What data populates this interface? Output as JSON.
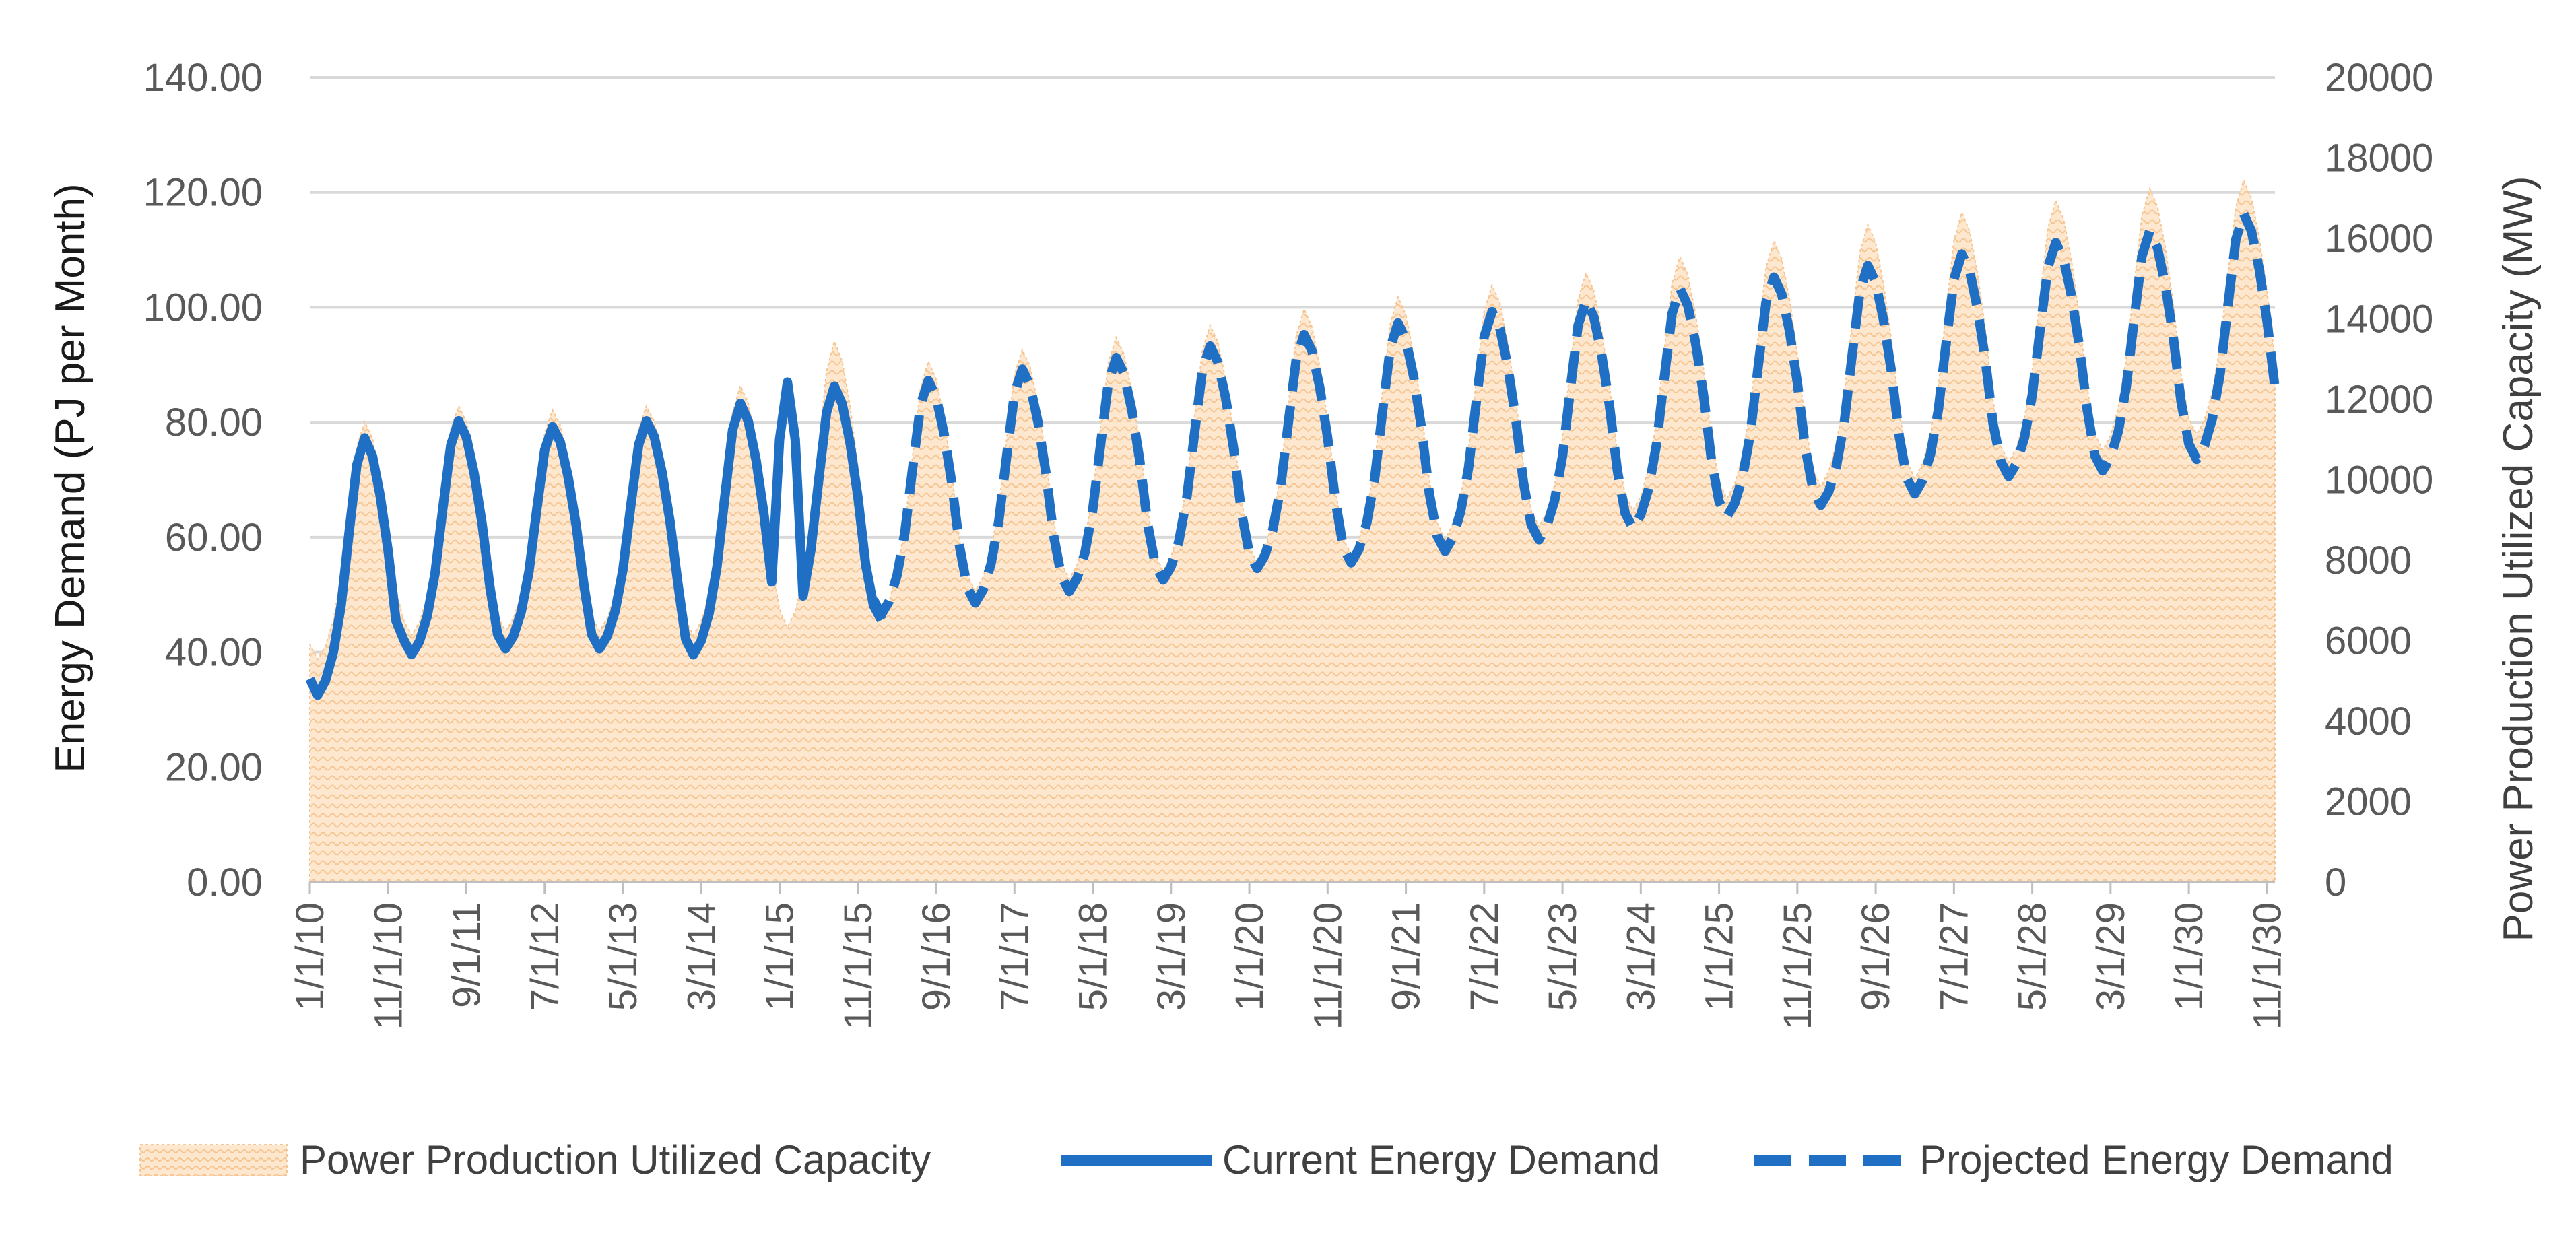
{
  "chart_data": {
    "type": "line",
    "title": "",
    "x_start": "2010-01",
    "x_end": "2030-12",
    "x_tick_labels": [
      "1/1/10",
      "11/1/10",
      "9/1/11",
      "7/1/12",
      "5/1/13",
      "3/1/14",
      "1/1/15",
      "11/1/15",
      "9/1/16",
      "7/1/17",
      "5/1/18",
      "3/1/19",
      "1/1/20",
      "11/1/20",
      "9/1/21",
      "7/1/22",
      "5/1/23",
      "3/1/24",
      "1/1/25",
      "11/1/25",
      "9/1/26",
      "7/1/27",
      "5/1/28",
      "3/1/29",
      "1/1/30",
      "11/1/30"
    ],
    "ylabel_left": "Energy Demand (PJ per Month)",
    "ylabel_right": "Power Production Utilized Capacity (MW)",
    "ylim_left": [
      0,
      140
    ],
    "ylim_right": [
      0,
      20000
    ],
    "y_ticks_left": [
      "0.00",
      "20.00",
      "40.00",
      "60.00",
      "80.00",
      "100.00",
      "120.00",
      "140.00"
    ],
    "y_ticks_right": [
      "0",
      "2000",
      "4000",
      "6000",
      "8000",
      "10000",
      "12000",
      "14000",
      "16000",
      "18000",
      "20000"
    ],
    "grid": true,
    "legend_position": "bottom",
    "series": [
      {
        "name": "Power Production Utilized Capacity",
        "kind": "area",
        "axis": "right",
        "color": "#fbe3c4",
        "pattern_color": "#f5c48e",
        "description": "monthly capacity (MW), approx 1.02x energy demand scaled to right axis",
        "yearly_peaks_mw": [
          11400,
          11800,
          11700,
          11800,
          12300,
          13400,
          12900,
          13200,
          13500,
          13800,
          14200,
          14500,
          14800,
          15100,
          15500,
          15900,
          16300,
          16600,
          16900,
          17200,
          17400
        ],
        "yearly_troughs_mw": [
          5600,
          6200,
          6300,
          6300,
          6200,
          6400,
          6700,
          7300,
          7600,
          7800,
          8000,
          8200,
          8600,
          8900,
          9300,
          9600,
          9900,
          10100,
          10500,
          10800,
          11200
        ]
      },
      {
        "name": "Current Energy Demand",
        "kind": "line",
        "axis": "left",
        "color": "#1f6fc5",
        "start": "2010-01",
        "end": "2016-02",
        "yearly_peaks": [
          77,
          80,
          79,
          80,
          83,
          86
        ],
        "yearly_troughs": [
          33,
          40,
          41,
          41,
          40,
          43,
          46
        ],
        "early_2015_peak": 87
      },
      {
        "name": "Projected Energy Demand",
        "kind": "line",
        "dashed": true,
        "axis": "left",
        "color": "#1f6fc5",
        "start": "2016-01",
        "end": "2030-12",
        "yearly_peaks": [
          87,
          89,
          91,
          93,
          95,
          97,
          99,
          101,
          103,
          105,
          107,
          109,
          111,
          113,
          116
        ],
        "yearly_troughs": [
          47,
          49,
          51,
          53,
          55,
          56,
          58,
          60,
          62,
          64,
          66,
          68,
          71,
          72,
          74
        ]
      }
    ]
  }
}
